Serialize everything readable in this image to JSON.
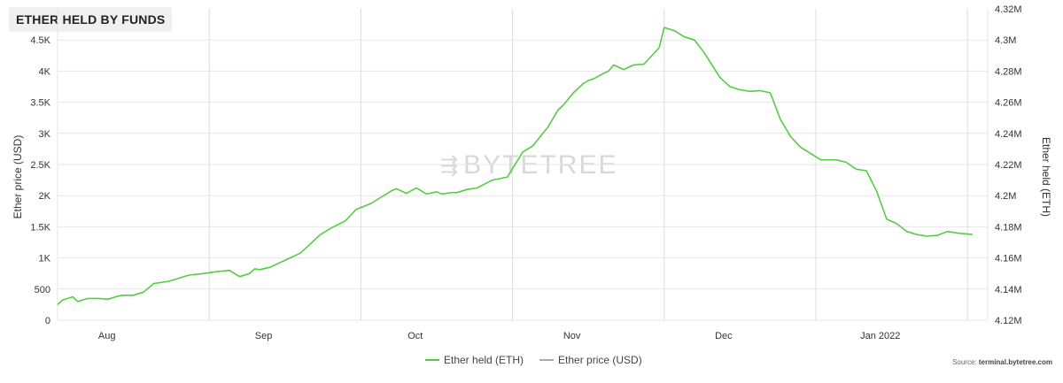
{
  "title": "ETHER HELD BY FUNDS",
  "watermark": "BYTETREE",
  "source_prefix": "Source: ",
  "source_site": "terminal.bytetree.com",
  "colors": {
    "eth_held": "#55cc44",
    "price": "#aaaaaa",
    "grid": "#e6e6e6",
    "axis_text": "#333333"
  },
  "chart_data": {
    "type": "line",
    "x_tick_labels": [
      "Aug",
      "Sep",
      "Oct",
      "Nov",
      "Dec",
      "Jan 2022"
    ],
    "ylabel_left": "Ether price (USD)",
    "ylabel_right": "Ether held (ETH)",
    "ylim_left": [
      0,
      5000
    ],
    "ylim_right": [
      4120000,
      4320000
    ],
    "left_ticks": [
      "0",
      "500",
      "1K",
      "1.5K",
      "2K",
      "2.5K",
      "3K",
      "3.5K",
      "4K",
      "4.5K"
    ],
    "right_ticks": [
      "4.12M",
      "4.14M",
      "4.16M",
      "4.18M",
      "4.2M",
      "4.22M",
      "4.24M",
      "4.26M",
      "4.28M",
      "4.3M",
      "4.32M"
    ],
    "grid": true,
    "legend_position": "bottom-center",
    "series": [
      {
        "name": "Ether held (ETH)",
        "axis": "right",
        "x": [
          "2021-07-24",
          "2021-07-25",
          "2021-07-27",
          "2021-07-28",
          "2021-07-30",
          "2021-08-01",
          "2021-08-03",
          "2021-08-05",
          "2021-08-06",
          "2021-08-08",
          "2021-08-10",
          "2021-08-12",
          "2021-08-15",
          "2021-08-17",
          "2021-08-19",
          "2021-08-22",
          "2021-08-24",
          "2021-08-27",
          "2021-08-29",
          "2021-08-31",
          "2021-09-01",
          "2021-09-02",
          "2021-09-04",
          "2021-09-06",
          "2021-09-08",
          "2021-09-10",
          "2021-09-12",
          "2021-09-14",
          "2021-09-16",
          "2021-09-19",
          "2021-09-21",
          "2021-09-24",
          "2021-09-26",
          "2021-09-28",
          "2021-09-29",
          "2021-10-01",
          "2021-10-03",
          "2021-10-05",
          "2021-10-07",
          "2021-10-08",
          "2021-10-10",
          "2021-10-11",
          "2021-10-13",
          "2021-10-15",
          "2021-10-18",
          "2021-10-21",
          "2021-10-24",
          "2021-10-26",
          "2021-10-29",
          "2021-10-31",
          "2021-11-01",
          "2021-11-03",
          "2021-11-05",
          "2021-11-06",
          "2021-11-07",
          "2021-11-09",
          "2021-11-10",
          "2021-11-11",
          "2021-11-13",
          "2021-11-15",
          "2021-11-17",
          "2021-11-20",
          "2021-11-21",
          "2021-11-23",
          "2021-11-25",
          "2021-11-27",
          "2021-11-29",
          "2021-12-02",
          "2021-12-04",
          "2021-12-06",
          "2021-12-08",
          "2021-12-10",
          "2021-12-12",
          "2021-12-14",
          "2021-12-16",
          "2021-12-18",
          "2021-12-20",
          "2021-12-22",
          "2021-12-25",
          "2021-12-27",
          "2021-12-29",
          "2021-12-31",
          "2022-01-02",
          "2022-01-04",
          "2022-01-06",
          "2022-01-08",
          "2022-01-10",
          "2022-01-12",
          "2022-01-14",
          "2022-01-16",
          "2022-01-18",
          "2022-01-21"
        ],
        "y": [
          4130000,
          4133000,
          4135000,
          4132000,
          4134000,
          4134000,
          4133500,
          4135500,
          4136000,
          4136000,
          4138000,
          4143500,
          4145000,
          4147000,
          4149000,
          4150000,
          4151000,
          4152000,
          4148000,
          4150000,
          4153000,
          4152500,
          4154000,
          4157000,
          4160000,
          4163000,
          4169000,
          4175000,
          4179000,
          4184000,
          4191000,
          4195000,
          4199000,
          4203000,
          4204500,
          4201500,
          4205000,
          4201000,
          4202500,
          4201000,
          4202000,
          4202000,
          4204000,
          4205000,
          4210000,
          4212000,
          4228000,
          4232000,
          4244000,
          4255000,
          4258000,
          4266000,
          4272000,
          4274000,
          4275000,
          4278500,
          4280000,
          4284000,
          4281000,
          4284000,
          4284500,
          4295000,
          4308000,
          4306000,
          4302000,
          4300000,
          4291500,
          4276000,
          4270000,
          4268000,
          4267000,
          4267500,
          4266000,
          4249000,
          4238000,
          4231000,
          4227000,
          4223000,
          4223000,
          4221500,
          4217000,
          4216000,
          4203000,
          4185000,
          4182000,
          4177000,
          4175000,
          4174000,
          4174500,
          4177000,
          4176000,
          4175000
        ]
      },
      {
        "name": "Ether price (USD)",
        "axis": "left",
        "x": [],
        "y": []
      }
    ]
  }
}
